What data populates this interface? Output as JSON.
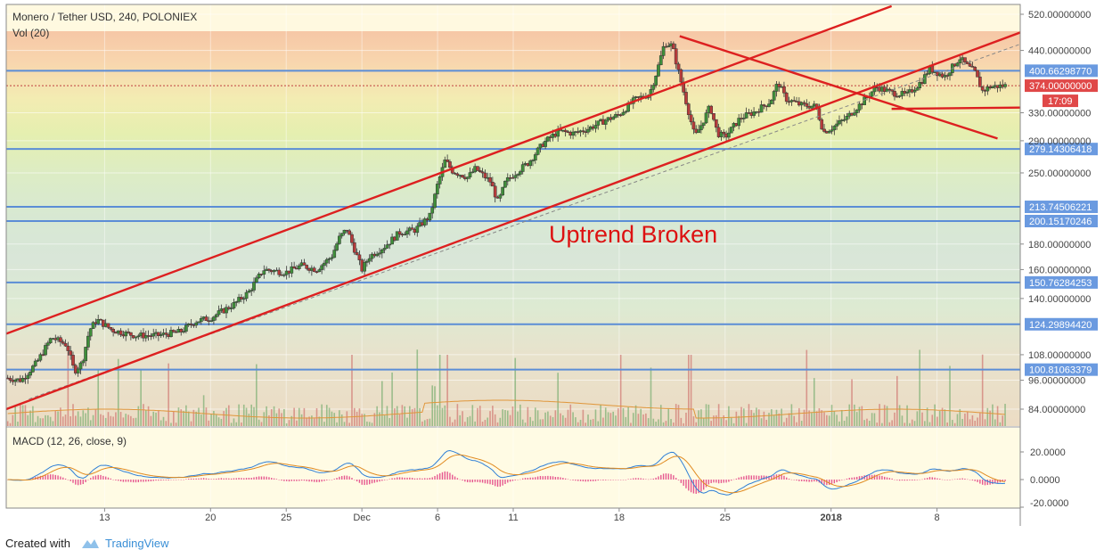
{
  "chart_data": {
    "type": "candlestick",
    "title": "Monero / Tether USD, 240, POLONIEX",
    "volume_label": "Vol (20)",
    "macd_label": "MACD (12, 26, close, 9)",
    "annotation": "Uptrend Broken",
    "y_scale": "log",
    "ylim": [
      78,
      540
    ],
    "price_ticks": [
      84,
      96,
      108,
      140,
      160,
      180,
      200,
      250,
      290,
      330,
      440,
      520
    ],
    "price_tick_labels": [
      "84.00000000",
      "96.00000000",
      "108.00000000",
      "140.00000000",
      "160.00000000",
      "180.00000000",
      "200.00000000",
      "250.00000000",
      "290.00000000",
      "330.00000000",
      "440.00000000",
      "520.00000000"
    ],
    "x_ticks": [
      {
        "day": 13,
        "label": "13"
      },
      {
        "day": 20,
        "label": "20"
      },
      {
        "day": 25,
        "label": "25"
      },
      {
        "day": 30,
        "label": "Dec"
      },
      {
        "day": 35,
        "label": "6"
      },
      {
        "day": 40,
        "label": "11"
      },
      {
        "day": 47,
        "label": "18"
      },
      {
        "day": 54,
        "label": "25"
      },
      {
        "day": 61,
        "label": "2018"
      },
      {
        "day": 68,
        "label": "8"
      }
    ],
    "x_range_days": [
      6.5,
      73.5
    ],
    "levels": [
      {
        "value": 400.6629877,
        "label": "400.66298770"
      },
      {
        "value": 279.14306418,
        "label": "279.14306418"
      },
      {
        "value": 213.74506221,
        "label": "213.74506221"
      },
      {
        "value": 200.15170246,
        "label": "200.15170246"
      },
      {
        "value": 150.76284253,
        "label": "150.76284253"
      },
      {
        "value": 124.2989442,
        "label": "124.29894420"
      },
      {
        "value": 100.81063379,
        "label": "100.81063379"
      }
    ],
    "current_price": {
      "value": 374.0,
      "label": "374.00000000",
      "time": "17:09"
    },
    "macd_ticks": [
      {
        "value": 20,
        "label": "20.0000"
      },
      {
        "value": 0,
        "label": "0.0000"
      },
      {
        "value": -20,
        "label": "-20.0000"
      }
    ],
    "price_path": [
      [
        6.5,
        97
      ],
      [
        7.5,
        96
      ],
      [
        8.5,
        104
      ],
      [
        9.5,
        117
      ],
      [
        10.5,
        113
      ],
      [
        11,
        100
      ],
      [
        11.5,
        104
      ],
      [
        12,
        121
      ],
      [
        12.5,
        127
      ],
      [
        13.5,
        121
      ],
      [
        15,
        118
      ],
      [
        16.5,
        118
      ],
      [
        18,
        120
      ],
      [
        19,
        126
      ],
      [
        20,
        128
      ],
      [
        21.5,
        136
      ],
      [
        22.5,
        144
      ],
      [
        23.5,
        160
      ],
      [
        25,
        158
      ],
      [
        26,
        163
      ],
      [
        27,
        160
      ],
      [
        28,
        170
      ],
      [
        28.5,
        185
      ],
      [
        29,
        193
      ],
      [
        29.5,
        176
      ],
      [
        30,
        160
      ],
      [
        30.5,
        170
      ],
      [
        31.5,
        178
      ],
      [
        32.5,
        190
      ],
      [
        33.5,
        192
      ],
      [
        34.5,
        205
      ],
      [
        35,
        237
      ],
      [
        35.5,
        265
      ],
      [
        36,
        252
      ],
      [
        37,
        245
      ],
      [
        37.5,
        255
      ],
      [
        38.5,
        240
      ],
      [
        39,
        218
      ],
      [
        39.5,
        240
      ],
      [
        40,
        248
      ],
      [
        41,
        262
      ],
      [
        42,
        287
      ],
      [
        43,
        303
      ],
      [
        44,
        300
      ],
      [
        45,
        307
      ],
      [
        46,
        318
      ],
      [
        47,
        327
      ],
      [
        48,
        350
      ],
      [
        49,
        360
      ],
      [
        49.5,
        400
      ],
      [
        50,
        455
      ],
      [
        50.5,
        450
      ],
      [
        51,
        390
      ],
      [
        51.5,
        340
      ],
      [
        52,
        295
      ],
      [
        52.5,
        315
      ],
      [
        53,
        340
      ],
      [
        53.5,
        300
      ],
      [
        54,
        295
      ],
      [
        55,
        322
      ],
      [
        56,
        332
      ],
      [
        57,
        348
      ],
      [
        57.5,
        380
      ],
      [
        58,
        352
      ],
      [
        59,
        342
      ],
      [
        60,
        340
      ],
      [
        60.5,
        302
      ],
      [
        61,
        307
      ],
      [
        62,
        322
      ],
      [
        63,
        345
      ],
      [
        64,
        372
      ],
      [
        65,
        362
      ],
      [
        66,
        358
      ],
      [
        67,
        382
      ],
      [
        67.5,
        405
      ],
      [
        68.5,
        390
      ],
      [
        69.5,
        425
      ],
      [
        70,
        410
      ],
      [
        70.5,
        398
      ],
      [
        71,
        365
      ],
      [
        71.5,
        372
      ],
      [
        72.5,
        374
      ]
    ],
    "trendlines": [
      {
        "from": [
          6.5,
          119
        ],
        "to": [
          65,
          540
        ]
      },
      {
        "from": [
          6.5,
          84
        ],
        "to": [
          73.5,
          478
        ]
      },
      {
        "from": [
          51,
          470
        ],
        "to": [
          72,
          293
        ]
      },
      {
        "from": [
          65,
          336
        ],
        "to": [
          73.5,
          338
        ]
      }
    ],
    "dashed_trend": {
      "from": [
        8,
        88
      ],
      "to": [
        73.5,
        453
      ]
    }
  }
}
